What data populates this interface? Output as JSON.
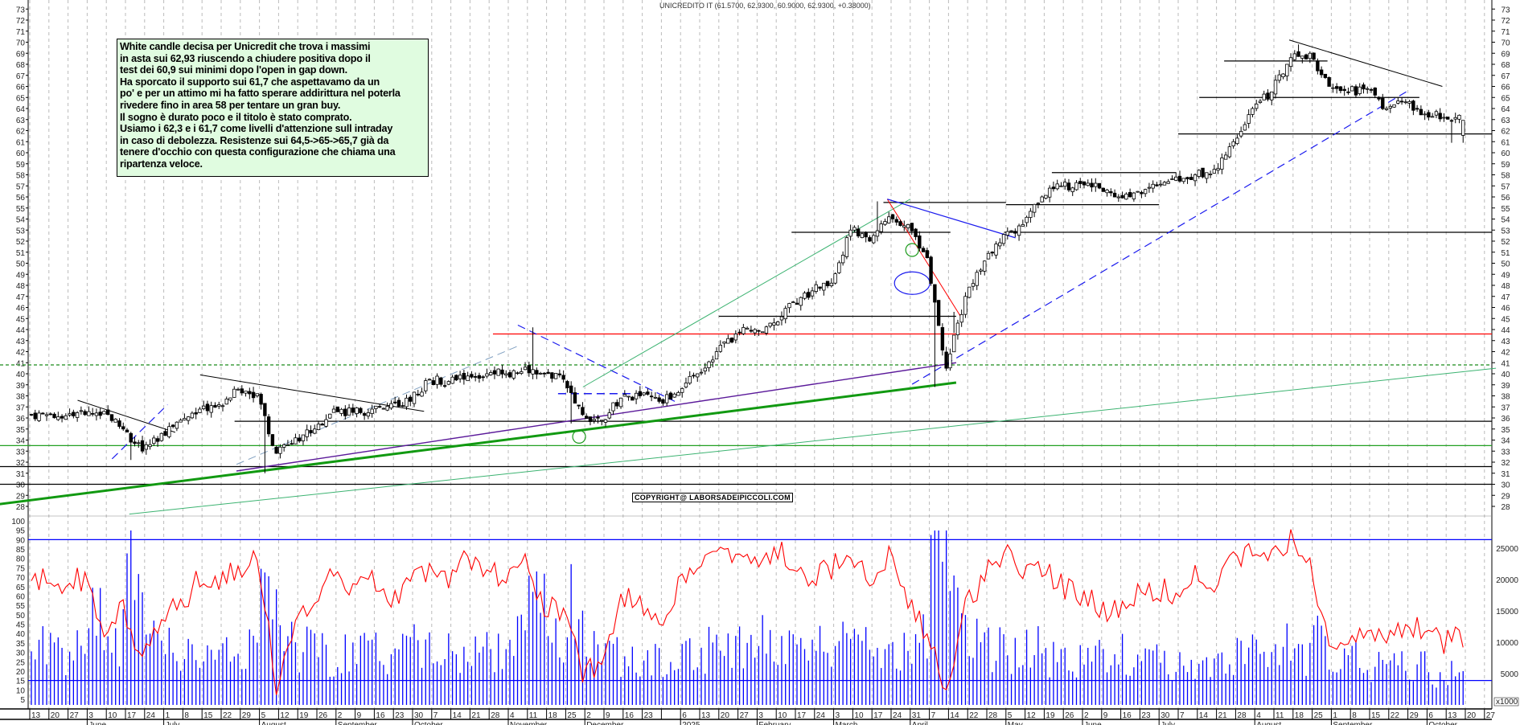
{
  "chart_data": {
    "type": "candlestick",
    "title": "UNICREDITO IT (61.5700, 62.9300, 60.9000, 62.9300, +0.38000)",
    "symbol": "UNICREDITO IT",
    "last_ohlc": {
      "open": 61.57,
      "high": 62.93,
      "low": 60.9,
      "close": 62.93,
      "change": 0.38
    },
    "price_axis": {
      "min": 28,
      "max": 73,
      "ticks": [
        28,
        29,
        30,
        31,
        32,
        33,
        34,
        35,
        36,
        37,
        38,
        39,
        40,
        41,
        42,
        43,
        44,
        45,
        46,
        47,
        48,
        49,
        50,
        51,
        52,
        53,
        54,
        55,
        56,
        57,
        58,
        59,
        60,
        61,
        62,
        63,
        64,
        65,
        66,
        67,
        68,
        69,
        70,
        71,
        72,
        73
      ]
    },
    "oscillator_axis": {
      "min": 0,
      "max": 100,
      "ticks": [
        5,
        10,
        15,
        20,
        25,
        30,
        35,
        40,
        45,
        50,
        55,
        60,
        65,
        70,
        75,
        80,
        85,
        90,
        95,
        100
      ],
      "levels": [
        90,
        15
      ]
    },
    "volume_axis": {
      "ticks": [
        "5000",
        "10000",
        "15000",
        "20000",
        "25000"
      ],
      "unit_label": "x1000",
      "level": 5000
    },
    "date_ticks": [
      "13",
      "20",
      "27",
      "3",
      "10",
      "17",
      "24",
      "1",
      "8",
      "15",
      "22",
      "29",
      "5",
      "12",
      "19",
      "26",
      "2",
      "9",
      "16",
      "23",
      "30",
      "7",
      "14",
      "21",
      "28",
      "4",
      "11",
      "18",
      "25",
      "2",
      "9",
      "16",
      "23",
      "",
      "6",
      "13",
      "20",
      "27",
      "3",
      "10",
      "17",
      "24",
      "3",
      "10",
      "17",
      "24",
      "31",
      "7",
      "14",
      "22",
      "28",
      "5",
      "12",
      "19",
      "26",
      "2",
      "9",
      "16",
      "23",
      "30",
      "7",
      "14",
      "21",
      "28",
      "4",
      "11",
      "18",
      "25",
      "1",
      "8",
      "15",
      "22",
      "29",
      "6",
      "13",
      "20",
      "27"
    ],
    "months": [
      {
        "week": 3,
        "label": "June"
      },
      {
        "week": 7,
        "label": "July"
      },
      {
        "week": 12,
        "label": "August"
      },
      {
        "week": 16,
        "label": "September"
      },
      {
        "week": 20,
        "label": "October"
      },
      {
        "week": 25,
        "label": "November"
      },
      {
        "week": 29,
        "label": "December"
      },
      {
        "week": 34,
        "label": "2025"
      },
      {
        "week": 38,
        "label": "February"
      },
      {
        "week": 42,
        "label": "March"
      },
      {
        "week": 46,
        "label": "April"
      },
      {
        "week": 51,
        "label": "May"
      },
      {
        "week": 55,
        "label": "June"
      },
      {
        "week": 59,
        "label": "July"
      },
      {
        "week": 64,
        "label": "August"
      },
      {
        "week": 68,
        "label": "September"
      },
      {
        "week": 73,
        "label": "October"
      }
    ],
    "weekly_close": [
      36.3,
      36.2,
      36.3,
      36.6,
      35.0,
      33.0,
      34.6,
      35.8,
      36.8,
      37.2,
      38.6,
      38.2,
      32.8,
      34.2,
      35.0,
      36.8,
      36.5,
      36.8,
      37.3,
      37.5,
      39.5,
      39.3,
      39.8,
      40.0,
      40.0,
      40.6,
      40.0,
      39.5,
      36.3,
      35.8,
      37.8,
      38.0,
      37.5,
      38.3,
      40.0,
      42.0,
      43.6,
      44.0,
      44.6,
      46.5,
      47.5,
      48.2,
      53.0,
      52.0,
      54.2,
      53.5,
      50.5,
      40.5,
      47.0,
      50.2,
      52.6,
      53.5,
      56.0,
      57.0,
      57.2,
      56.8,
      56.0,
      56.5,
      57.0,
      57.8,
      58.0,
      58.5,
      61.0,
      64.0,
      65.5,
      68.6,
      69.0,
      66.0,
      65.5,
      65.8,
      64.0,
      64.6,
      63.5,
      63.2,
      62.93
    ],
    "weekly_low_override": {
      "5": 32.2,
      "12": 31.0,
      "26": 39.5,
      "28": 35.5,
      "47": 38.8,
      "48": 45.6,
      "74": 60.9
    },
    "weekly_high_override": {
      "26": 44.2,
      "44": 55.6,
      "66": 69.8
    },
    "oscillator_weekly": [
      68,
      66,
      70,
      45,
      55,
      25,
      50,
      55,
      70,
      65,
      75,
      85,
      10,
      50,
      55,
      75,
      60,
      70,
      60,
      65,
      75,
      70,
      80,
      75,
      70,
      80,
      55,
      50,
      20,
      20,
      60,
      55,
      45,
      65,
      80,
      85,
      80,
      75,
      85,
      80,
      70,
      75,
      85,
      65,
      80,
      60,
      40,
      12,
      55,
      70,
      85,
      70,
      75,
      65,
      60,
      55,
      50,
      60,
      65,
      60,
      70,
      65,
      80,
      85,
      80,
      90,
      75,
      30,
      40,
      35,
      40,
      45,
      40,
      35,
      38
    ],
    "volume_weekly_thousands": [
      9,
      8,
      9,
      14,
      11,
      18,
      10,
      9,
      8,
      8,
      8,
      9,
      20,
      11,
      9,
      8,
      8,
      8,
      8,
      9,
      9,
      8,
      8,
      9,
      9,
      10,
      15,
      10,
      11,
      9,
      8,
      8,
      7,
      8,
      9,
      9,
      9,
      9,
      10,
      9,
      9,
      10,
      12,
      11,
      9,
      8,
      10,
      27,
      14,
      11,
      9,
      8,
      9,
      8,
      7,
      8,
      7,
      8,
      7,
      7,
      6,
      6,
      7,
      8,
      9,
      9,
      7,
      10,
      7,
      7,
      6,
      6,
      6,
      5,
      5
    ],
    "annotations": {
      "hlines": [
        {
          "price": 35.7,
          "from": 10.7,
          "to": 76.6,
          "color": "#000000"
        },
        {
          "price": 31.6,
          "from": -1.6,
          "to": 76.6,
          "color": "#000000"
        },
        {
          "price": 30.0,
          "from": -1.6,
          "to": 76.6,
          "color": "#000000"
        },
        {
          "price": 33.5,
          "from": -1.6,
          "to": 76.6,
          "color": "#22a022"
        },
        {
          "price": 40.8,
          "from": -1.6,
          "to": 76.6,
          "color": "#1a8a1a",
          "dashed": true
        },
        {
          "price": 43.6,
          "from": 24.2,
          "to": 76.6,
          "color": "#ff0000"
        },
        {
          "price": 52.8,
          "from": 50.9,
          "to": 76.6,
          "color": "#000000"
        },
        {
          "price": 52.8,
          "from": 39.8,
          "to": 48.1,
          "color": "#000000"
        },
        {
          "price": 61.7,
          "from": 60.0,
          "to": 76.6,
          "color": "#000000"
        },
        {
          "price": 65.0,
          "from": 61.1,
          "to": 72.6,
          "color": "#000000"
        },
        {
          "price": 68.3,
          "from": 62.4,
          "to": 67.8,
          "color": "#000000"
        },
        {
          "price": 58.2,
          "from": 53.4,
          "to": 59.9,
          "color": "#000000"
        },
        {
          "price": 55.3,
          "from": 51.0,
          "to": 59.0,
          "color": "#000000"
        },
        {
          "price": 55.5,
          "from": 44.6,
          "to": 51.0,
          "color": "#000000"
        },
        {
          "price": 45.2,
          "from": 36.0,
          "to": 48.4,
          "color": "#000000"
        }
      ],
      "trendlines": [
        {
          "w1": -1.6,
          "p1": 28.2,
          "w2": 48.4,
          "p2": 39.2,
          "color": "#119911",
          "width": 3
        },
        {
          "w1": 5.2,
          "p1": 27.3,
          "w2": 76.6,
          "p2": 40.5,
          "color": "#3cb371",
          "width": 1
        },
        {
          "w1": 10.8,
          "p1": 31.2,
          "w2": 48.4,
          "p2": 41.0,
          "color": "#5b1a9a",
          "width": 1.4
        },
        {
          "w1": 46.1,
          "p1": 39.05,
          "w2": 72.1,
          "p2": 65.7,
          "color": "#1a1aee",
          "width": 1.2,
          "dashed": true
        },
        {
          "w1": 10.8,
          "p1": 31.8,
          "w2": 25.5,
          "p2": 42.5,
          "color": "#7f9fc0",
          "width": 1,
          "dashed": true
        },
        {
          "w1": 2.5,
          "p1": 37.6,
          "w2": 7.6,
          "p2": 34.7,
          "color": "#000000",
          "width": 1
        },
        {
          "w1": 8.9,
          "p1": 39.9,
          "w2": 20.6,
          "p2": 36.6,
          "color": "#000000",
          "width": 1
        },
        {
          "w1": 65.8,
          "p1": 70.2,
          "w2": 73.8,
          "p2": 66.0,
          "color": "#000000",
          "width": 1
        },
        {
          "w1": 4.3,
          "p1": 32.3,
          "w2": 7.2,
          "p2": 37.2,
          "color": "#1a1aee",
          "width": 1.2,
          "dashed": true
        },
        {
          "w1": 25.5,
          "p1": 44.4,
          "w2": 33.7,
          "p2": 37.5,
          "color": "#1a1aee",
          "width": 1.2,
          "dashed": true
        },
        {
          "w1": 27.6,
          "p1": 38.2,
          "w2": 31.8,
          "p2": 38.2,
          "color": "#1a1aee",
          "width": 1.5,
          "dashed": true
        },
        {
          "w1": 28.9,
          "p1": 38.8,
          "w2": 46.0,
          "p2": 55.8,
          "color": "#3cb371",
          "width": 1
        },
        {
          "w1": 44.8,
          "p1": 55.8,
          "w2": 48.7,
          "p2": 45.0,
          "color": "#ff0000",
          "width": 1
        },
        {
          "w1": 44.8,
          "p1": 55.8,
          "w2": 51.5,
          "p2": 52.3,
          "color": "#1a1aee",
          "width": 1.2
        }
      ],
      "ellipses": [
        {
          "week": 46.1,
          "price": 51.2,
          "color": "#1a9a1a",
          "kind": "small"
        },
        {
          "week": 46.1,
          "price": 48.2,
          "color": "#1a1aee",
          "kind": "wide"
        },
        {
          "week": 28.7,
          "price": 34.3,
          "color": "#1a9a1a",
          "kind": "small"
        }
      ]
    }
  },
  "note": {
    "lines": [
      "White candle decisa per Unicredit che trova i massimi",
      "in asta sui 62,93 riuscendo a chiudere positiva dopo il",
      "test dei 60,9 sui minimi dopo l'open in gap down.",
      "Ha sporcato il supporto sui 61,7 che aspettavamo da un",
      "po' e per un attimo mi ha fatto sperare addirittura nel poterla",
      "rivedere fino in area 58 per tentare un gran buy.",
      "Il sogno è durato poco e il titolo è stato comprato.",
      "Usiamo i 62,3 e i 61,7 come livelli d'attenzione sull intraday",
      "in caso di debolezza. Resistenze sui 64,5->65->65,7 già da",
      "tenere d'occhio con questa configurazione che chiama una",
      "ripartenza veloce."
    ]
  },
  "copyright": "COPYRIGHT@ LABORSADEIPICCOLI.COM",
  "colors": {
    "candle_up": "#ffffff",
    "candle_down": "#000000",
    "oscillator": "#ff0000",
    "volume": "#0000ff",
    "note_bg": "#e0fce0"
  }
}
